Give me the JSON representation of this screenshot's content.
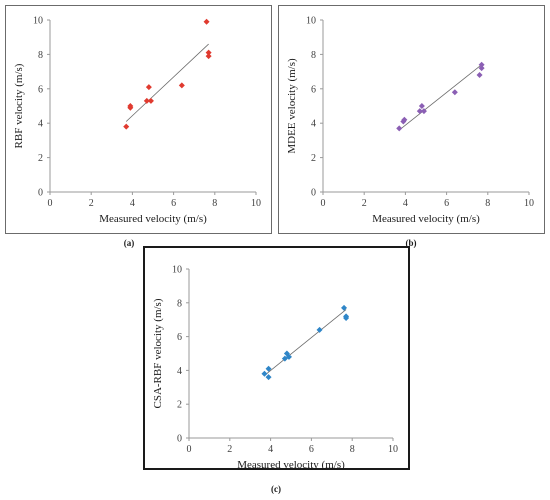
{
  "chart_data": [
    {
      "type": "scatter",
      "panel": "(a)",
      "xlabel": "Measured velocity (m/s)",
      "ylabel": "RBF velocity (m/s)",
      "xlim": [
        0,
        10
      ],
      "ylim": [
        0,
        10
      ],
      "xticks": [
        0,
        2,
        4,
        6,
        8,
        10
      ],
      "yticks": [
        0,
        2,
        4,
        6,
        8,
        10
      ],
      "grid": false,
      "marker": "diamond",
      "color": "#e03a2f",
      "points": [
        [
          3.7,
          3.8
        ],
        [
          3.9,
          4.9
        ],
        [
          3.9,
          5.0
        ],
        [
          4.7,
          5.3
        ],
        [
          4.8,
          6.1
        ],
        [
          4.9,
          5.3
        ],
        [
          6.4,
          6.2
        ],
        [
          7.6,
          9.9
        ],
        [
          7.7,
          8.1
        ],
        [
          7.7,
          7.9
        ]
      ],
      "trendline": [
        [
          3.7,
          4.1
        ],
        [
          7.7,
          8.6
        ]
      ]
    },
    {
      "type": "scatter",
      "panel": "(b)",
      "xlabel": "Measured velocity (m/s)",
      "ylabel": "MDEE velocity (m/s)",
      "xlim": [
        0,
        10
      ],
      "ylim": [
        0,
        10
      ],
      "xticks": [
        0,
        2,
        4,
        6,
        8,
        10
      ],
      "yticks": [
        0,
        2,
        4,
        6,
        8,
        10
      ],
      "grid": false,
      "marker": "diamond",
      "color": "#8b5fb4",
      "points": [
        [
          3.7,
          3.7
        ],
        [
          3.9,
          4.1
        ],
        [
          3.95,
          4.2
        ],
        [
          4.7,
          4.7
        ],
        [
          4.8,
          5.0
        ],
        [
          4.9,
          4.7
        ],
        [
          6.4,
          5.8
        ],
        [
          7.6,
          6.8
        ],
        [
          7.7,
          7.2
        ],
        [
          7.7,
          7.4
        ]
      ],
      "trendline": [
        [
          3.7,
          3.6
        ],
        [
          7.7,
          7.4
        ]
      ]
    },
    {
      "type": "scatter",
      "panel": "(c)",
      "xlabel": "Measured velocity (m/s)",
      "ylabel": "CSA-RBF velocity (m/s)",
      "xlim": [
        0,
        10
      ],
      "ylim": [
        0,
        10
      ],
      "xticks": [
        0,
        2,
        4,
        6,
        8,
        10
      ],
      "yticks": [
        0,
        2,
        4,
        6,
        8,
        10
      ],
      "grid": false,
      "marker": "diamond",
      "color": "#2f86c8",
      "points": [
        [
          3.7,
          3.8
        ],
        [
          3.9,
          3.6
        ],
        [
          3.9,
          4.1
        ],
        [
          4.7,
          4.7
        ],
        [
          4.8,
          5.0
        ],
        [
          4.9,
          4.8
        ],
        [
          6.4,
          6.4
        ],
        [
          7.6,
          7.7
        ],
        [
          7.7,
          7.2
        ],
        [
          7.7,
          7.1
        ]
      ],
      "trendline": [
        [
          3.7,
          3.7
        ],
        [
          7.7,
          7.6
        ]
      ]
    }
  ],
  "captions": {
    "a": "(a)",
    "b": "(b)",
    "c": "(c)"
  }
}
